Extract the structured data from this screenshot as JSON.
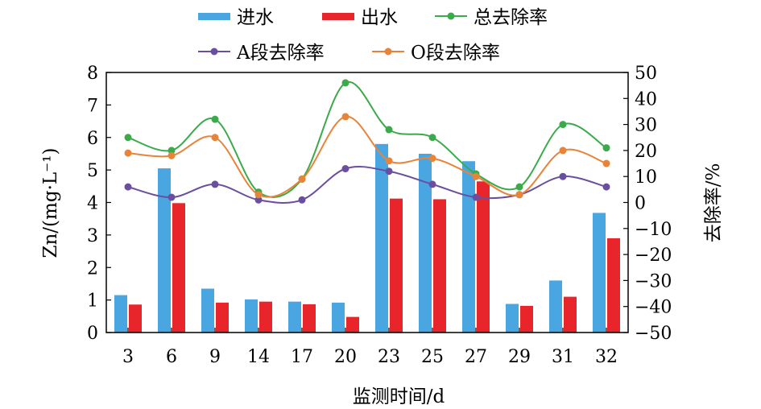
{
  "chart_data": {
    "type": "bar",
    "categories": [
      "3",
      "6",
      "9",
      "14",
      "17",
      "20",
      "23",
      "25",
      "27",
      "29",
      "31",
      "32"
    ],
    "xlabel": "监测时间/d",
    "ylabel_left": "Zn/(mg·L⁻¹)",
    "ylabel_right": "去除率/%",
    "ylim_left": [
      0,
      8
    ],
    "ylim_right": [
      -50,
      50
    ],
    "yticks_left": [
      "0",
      "1",
      "2",
      "3",
      "4",
      "5",
      "6",
      "7",
      "8"
    ],
    "yticks_right": [
      "−50",
      "−40",
      "−30",
      "−20",
      "−10",
      "0",
      "10",
      "20",
      "30",
      "40",
      "50"
    ],
    "bar_series": [
      {
        "name": "进水",
        "color": "#4aa6e0",
        "values": [
          1.15,
          5.05,
          1.35,
          1.02,
          0.95,
          0.92,
          5.8,
          5.5,
          5.27,
          0.88,
          1.6,
          3.68
        ]
      },
      {
        "name": "出水",
        "color": "#e8252b",
        "values": [
          0.86,
          3.98,
          0.92,
          0.95,
          0.87,
          0.48,
          4.12,
          4.1,
          4.65,
          0.82,
          1.1,
          2.9
        ]
      }
    ],
    "line_series": [
      {
        "name": "总去除率",
        "color": "#3aaa4a",
        "axis": "right",
        "values": [
          25,
          20,
          32,
          4,
          9,
          46,
          28,
          25,
          11,
          6,
          30,
          21
        ]
      },
      {
        "name": "A段去除率",
        "color": "#6a4fa0",
        "axis": "right",
        "values": [
          6,
          2,
          7,
          1,
          1,
          13,
          12,
          7,
          2,
          3,
          10,
          6
        ]
      },
      {
        "name": "O段去除率",
        "color": "#e8843a",
        "axis": "right",
        "values": [
          19,
          18,
          25,
          3,
          9,
          33,
          16,
          17,
          10,
          3,
          20,
          15
        ]
      }
    ],
    "grid": false,
    "legend_position": "top"
  }
}
